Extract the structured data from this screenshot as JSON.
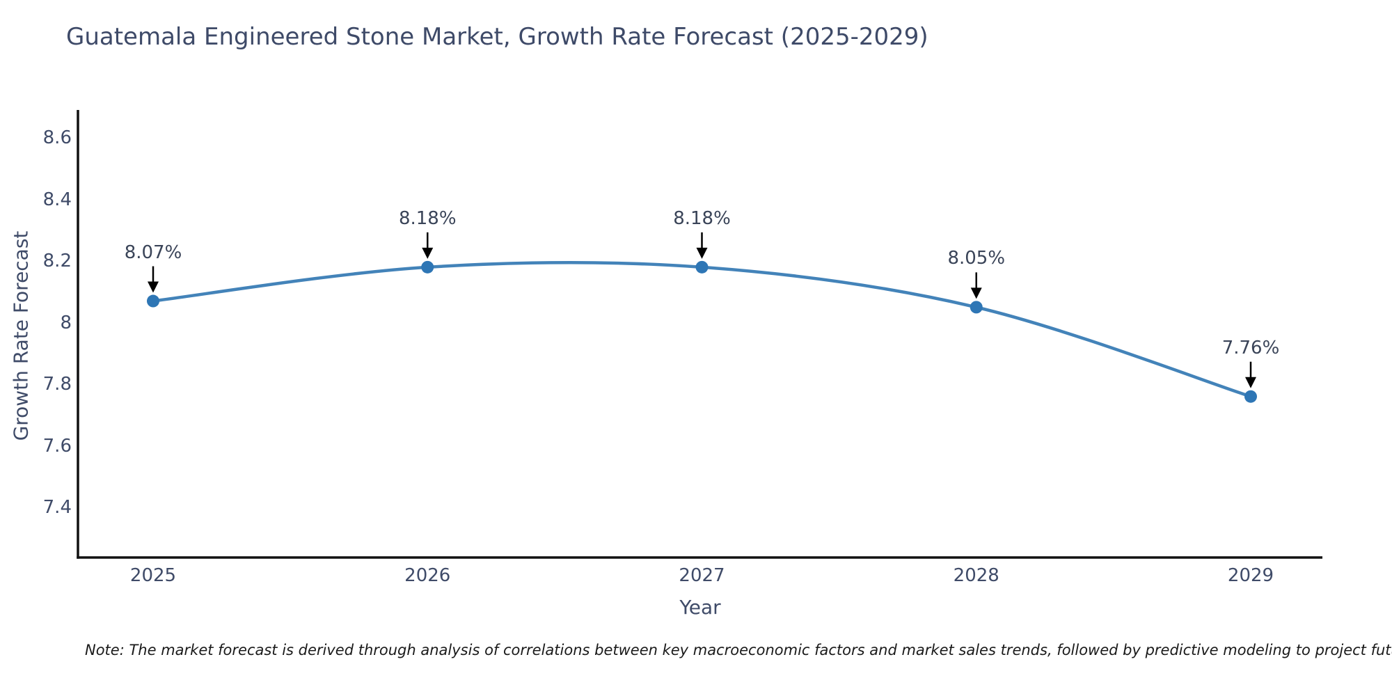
{
  "note": "Note: The market forecast is derived through analysis of correlations between key macroeconomic factors and market sales trends, followed by predictive modeling to project future sales.",
  "chart_data": {
    "type": "line",
    "title": "Guatemala Engineered Stone Market, Growth Rate Forecast (2025-2029)",
    "xlabel": "Year",
    "ylabel": "Growth Rate Forecast",
    "x": [
      2025,
      2026,
      2027,
      2028,
      2029
    ],
    "series": [
      {
        "name": "Growth Rate Forecast",
        "values": [
          8.07,
          8.18,
          8.18,
          8.05,
          7.76
        ]
      }
    ],
    "point_labels": [
      "8.07%",
      "8.18%",
      "8.18%",
      "8.05%",
      "7.76%"
    ],
    "x_tick_labels": [
      "2025",
      "2026",
      "2027",
      "2028",
      "2029"
    ],
    "y_ticks": [
      8.6,
      8.4,
      8.2,
      8.0,
      7.8,
      7.6,
      7.4
    ],
    "y_tick_labels": [
      "8.6",
      "8.4",
      "8.2",
      "8",
      "7.8",
      "7.6",
      "7.4"
    ],
    "ylim": [
      7.24,
      8.69
    ],
    "grid": false,
    "legend": "none",
    "annotation_style": "black down arrows from percentage labels to markers",
    "colors": {
      "line": "#4383b9",
      "marker": "#2e76b5",
      "axis": "#111111",
      "text": "#3f4b68",
      "annotation": "#3a4458",
      "note": "#1a1a1a"
    }
  }
}
